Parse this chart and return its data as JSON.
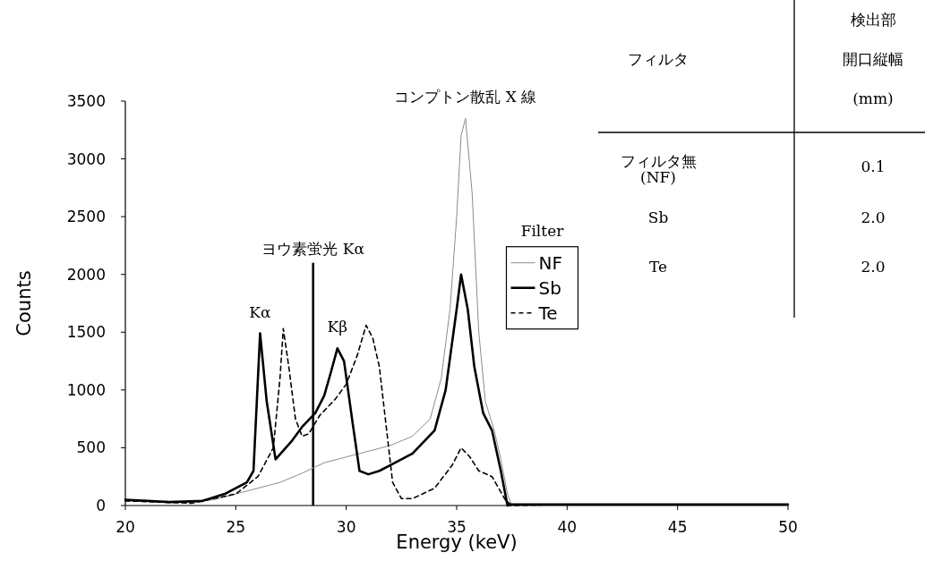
{
  "chart_data": [
    {
      "type": "line",
      "xlabel": "Energy (keV)",
      "ylabel": "Counts",
      "xlim": [
        20,
        50
      ],
      "ylim": [
        0,
        3500
      ],
      "xticks": [
        20,
        25,
        30,
        35,
        40,
        45,
        50
      ],
      "yticks": [
        0,
        500,
        1000,
        1500,
        2000,
        2500,
        3000,
        3500
      ],
      "legend": "right",
      "legend_title": "Filter",
      "series": [
        {
          "name": "NF",
          "color": "#8c8c8c",
          "line_style": "solid",
          "x": [
            20,
            22,
            24,
            25,
            26,
            27,
            28,
            29,
            30,
            31,
            32,
            33,
            33.8,
            34.3,
            34.7,
            35,
            35.2,
            35.4,
            35.7,
            36,
            36.3,
            36.7,
            37,
            37.3,
            37.5,
            40,
            45,
            50
          ],
          "values": [
            40,
            30,
            50,
            100,
            150,
            200,
            280,
            370,
            420,
            470,
            520,
            600,
            750,
            1100,
            1700,
            2500,
            3200,
            3350,
            2700,
            1500,
            900,
            650,
            400,
            100,
            0,
            10,
            10,
            10
          ]
        },
        {
          "name": "Sb",
          "color": "#000000",
          "line_style": "solid",
          "x": [
            20,
            22,
            23.5,
            24.5,
            25.5,
            25.8,
            26.1,
            26.4,
            26.8,
            27.5,
            28,
            28.6,
            29,
            29.3,
            29.6,
            29.9,
            30.3,
            30.6,
            31,
            31.5,
            32,
            33,
            34,
            34.5,
            35,
            35.2,
            35.5,
            35.8,
            36.2,
            36.6,
            37,
            37.3,
            37.5,
            40,
            45,
            50
          ],
          "values": [
            50,
            30,
            40,
            100,
            200,
            300,
            1490,
            900,
            400,
            550,
            680,
            800,
            950,
            1150,
            1360,
            1250,
            700,
            300,
            270,
            300,
            350,
            450,
            650,
            1000,
            1700,
            2000,
            1700,
            1200,
            800,
            650,
            300,
            0,
            10,
            10,
            10,
            10
          ]
        },
        {
          "name": "Te",
          "color": "#000000",
          "line_style": "dashed",
          "x": [
            20,
            23,
            25,
            26,
            26.7,
            27,
            27.15,
            27.4,
            27.7,
            28,
            28.3,
            28.8,
            29.5,
            30,
            30.5,
            30.9,
            31.2,
            31.5,
            31.8,
            32.1,
            32.5,
            33,
            34,
            34.8,
            35.2,
            35.6,
            36,
            36.6,
            37.2,
            37.5,
            40,
            45,
            50
          ],
          "values": [
            40,
            20,
            100,
            250,
            500,
            1100,
            1530,
            1200,
            750,
            600,
            620,
            780,
            920,
            1050,
            1300,
            1560,
            1450,
            1200,
            700,
            200,
            60,
            60,
            150,
            350,
            500,
            420,
            300,
            250,
            50,
            0,
            10,
            10,
            10
          ]
        }
      ],
      "ref_lines": [
        {
          "axis": "x",
          "value": 28.5,
          "label": "ヨウ素蛍光 Kα",
          "color": "#000000"
        }
      ],
      "annotations": [
        {
          "text": "コンプトン散乱 X 線",
          "x": 35.4,
          "y": 3350
        },
        {
          "text": "Kα",
          "x": 26.1,
          "y": 1490
        },
        {
          "text": "Kβ",
          "x": 29.6,
          "y": 1360
        }
      ]
    },
    {
      "type": "other",
      "annotations": [
        "フィルタ",
        "検出部",
        "開口縦幅",
        "(mm)",
        "フィルタ無",
        "(NF)",
        "0.1",
        "Sb",
        "2.0",
        "Te",
        "2.0"
      ]
    }
  ]
}
